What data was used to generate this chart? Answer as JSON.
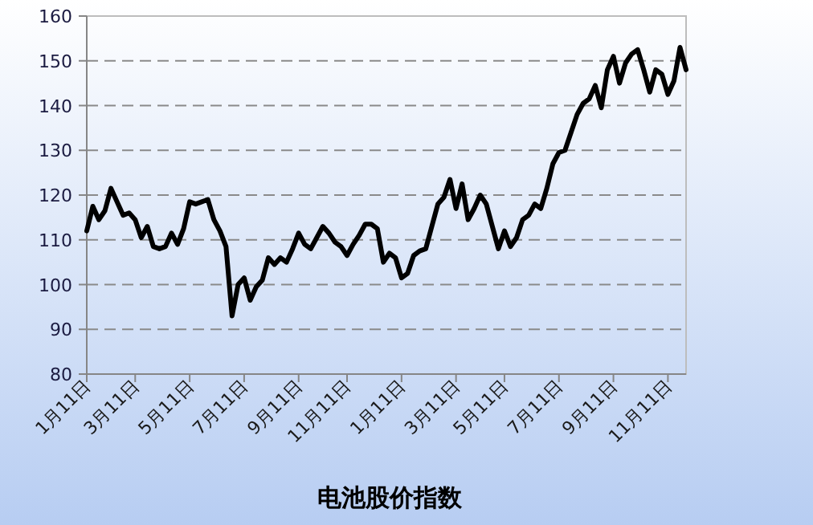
{
  "chart_data": {
    "type": "line",
    "xlabel": "电池股价指数",
    "grid": "y",
    "line_style": "solid",
    "ylim": [
      80,
      160
    ],
    "yticks": [
      80,
      90,
      100,
      110,
      120,
      130,
      140,
      150,
      160
    ],
    "categories": [
      "1月11日",
      null,
      null,
      null,
      null,
      null,
      null,
      null,
      "3月11日",
      null,
      null,
      null,
      null,
      null,
      null,
      null,
      null,
      "5月11日",
      null,
      null,
      null,
      null,
      null,
      null,
      null,
      null,
      "7月11日",
      null,
      null,
      null,
      null,
      null,
      null,
      null,
      null,
      "9月11日",
      null,
      null,
      null,
      null,
      null,
      null,
      null,
      "11月11日",
      null,
      null,
      null,
      null,
      null,
      null,
      null,
      null,
      "1月11日",
      null,
      null,
      null,
      null,
      null,
      null,
      null,
      null,
      "3月11日",
      null,
      null,
      null,
      null,
      null,
      null,
      null,
      "5月11日",
      null,
      null,
      null,
      null,
      null,
      null,
      null,
      null,
      "7月11日",
      null,
      null,
      null,
      null,
      null,
      null,
      null,
      null,
      "9月11日",
      null,
      null,
      null,
      null,
      null,
      null,
      null,
      null,
      "11月11日",
      null,
      null,
      null
    ],
    "series": [
      {
        "color": "#000000",
        "values": [
          112,
          117.5,
          114.5,
          116.5,
          121.5,
          118.5,
          115.5,
          116,
          114.5,
          110.5,
          113,
          108.5,
          108,
          108.5,
          111.5,
          109,
          112.5,
          118.5,
          118,
          118.5,
          119,
          114.5,
          112,
          108.5,
          93,
          100,
          101.5,
          96.5,
          99.5,
          101,
          106,
          104.5,
          106,
          105,
          108,
          111.5,
          109,
          108,
          110.5,
          113,
          111.5,
          109.5,
          108.5,
          106.5,
          109,
          111,
          113.5,
          113.5,
          112.5,
          105,
          107,
          106,
          101.5,
          102.5,
          106.5,
          107.5,
          108,
          113,
          118,
          119.5,
          123.5,
          117,
          122.5,
          114.5,
          117,
          120,
          118,
          113,
          108,
          112,
          108.5,
          110.5,
          114.5,
          115.5,
          118,
          117,
          121.5,
          127,
          129.5,
          130,
          134,
          138,
          140.5,
          141.5,
          144.5,
          139.5,
          148,
          151,
          145,
          149.5,
          151.5,
          152.5,
          148,
          143,
          148,
          147,
          142.5,
          145.5,
          153,
          148
        ]
      }
    ]
  }
}
